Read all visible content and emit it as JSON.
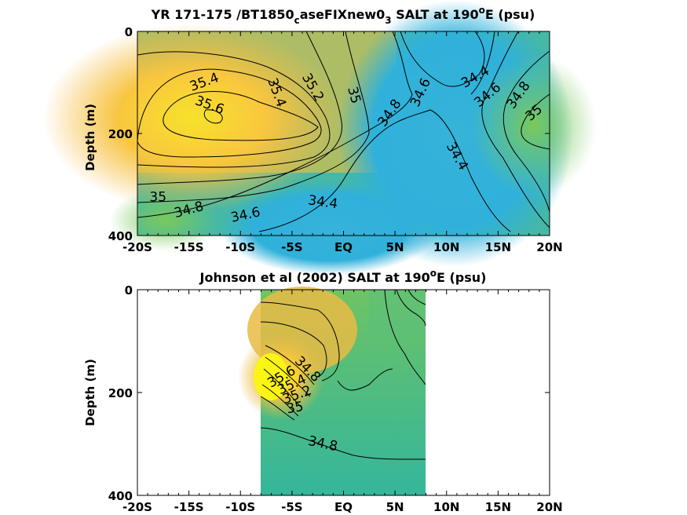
{
  "chart_data": [
    {
      "type": "heatmap",
      "title": "YR 171-175 /BT1850",
      "title_sub": "c",
      "title_mid": "aseFIXnew0",
      "title_sub2": "3",
      "title_tail": " SALT at 190",
      "title_sup": "o",
      "title_end": "E (psu)",
      "ylabel": "Depth (m)",
      "xlim": [
        -20,
        20
      ],
      "ylim": [
        0,
        400
      ],
      "y_reversed": true,
      "x_ticks": [
        {
          "value": -20,
          "label": "-20S"
        },
        {
          "value": -15,
          "label": "-15S"
        },
        {
          "value": -10,
          "label": "-10S"
        },
        {
          "value": -5,
          "label": "-5S"
        },
        {
          "value": 0,
          "label": "EQ"
        },
        {
          "value": 5,
          "label": "5N"
        },
        {
          "value": 10,
          "label": "10N"
        },
        {
          "value": 15,
          "label": "15N"
        },
        {
          "value": 20,
          "label": "20N"
        }
      ],
      "y_ticks": [
        {
          "value": 0,
          "label": "0"
        },
        {
          "value": 200,
          "label": "200"
        },
        {
          "value": 400,
          "label": "400"
        }
      ],
      "contour_labels": [
        {
          "text": "35.4",
          "lat": -13.5,
          "depth": 100,
          "rot": -20
        },
        {
          "text": "35.6",
          "lat": -13,
          "depth": 145,
          "rot": 20
        },
        {
          "text": "35.4",
          "lat": -6.5,
          "depth": 120,
          "rot": 70
        },
        {
          "text": "35.2",
          "lat": -3,
          "depth": 110,
          "rot": 60
        },
        {
          "text": "35",
          "lat": 1,
          "depth": 125,
          "rot": 75
        },
        {
          "text": "34.8",
          "lat": 4.5,
          "depth": 160,
          "rot": -55
        },
        {
          "text": "34.6",
          "lat": 7.5,
          "depth": 120,
          "rot": -65
        },
        {
          "text": "34.4",
          "lat": 12.8,
          "depth": 90,
          "rot": -30
        },
        {
          "text": "34.6",
          "lat": 14,
          "depth": 125,
          "rot": -40
        },
        {
          "text": "34.8",
          "lat": 17,
          "depth": 125,
          "rot": -55
        },
        {
          "text": "35",
          "lat": 18.5,
          "depth": 160,
          "rot": -40
        },
        {
          "text": "34.4",
          "lat": 11,
          "depth": 245,
          "rot": 60
        },
        {
          "text": "35",
          "lat": -18,
          "depth": 325,
          "rot": 0
        },
        {
          "text": "34.8",
          "lat": -15,
          "depth": 350,
          "rot": -15
        },
        {
          "text": "34.6",
          "lat": -9.5,
          "depth": 360,
          "rot": -12
        },
        {
          "text": "34.4",
          "lat": -2,
          "depth": 335,
          "rot": 8
        }
      ]
    },
    {
      "type": "heatmap",
      "title": "Johnson et al (2002) SALT at 190",
      "title_sup": "o",
      "title_end": "E (psu)",
      "ylabel": "Depth (m)",
      "xlim": [
        -20,
        20
      ],
      "ylim": [
        0,
        400
      ],
      "data_lat_range": [
        -8,
        8
      ],
      "y_reversed": true,
      "x_ticks": [
        {
          "value": -20,
          "label": "-20S"
        },
        {
          "value": -15,
          "label": "-15S"
        },
        {
          "value": -10,
          "label": "-10S"
        },
        {
          "value": -5,
          "label": "-5S"
        },
        {
          "value": 0,
          "label": "EQ"
        },
        {
          "value": 5,
          "label": "5N"
        },
        {
          "value": 10,
          "label": "10N"
        },
        {
          "value": 15,
          "label": "15N"
        },
        {
          "value": 20,
          "label": "20N"
        }
      ],
      "y_ticks": [
        {
          "value": 0,
          "label": "0"
        },
        {
          "value": 200,
          "label": "200"
        },
        {
          "value": 400,
          "label": "400"
        }
      ],
      "contour_labels": [
        {
          "text": "34.8",
          "lat": -2,
          "depth": 300,
          "rot": 12
        },
        {
          "text": "35",
          "lat": -4.7,
          "depth": 230,
          "rot": -10
        },
        {
          "text": "35.2",
          "lat": -4.5,
          "depth": 205,
          "rot": -20
        },
        {
          "text": "35.4",
          "lat": -5,
          "depth": 185,
          "rot": -25
        },
        {
          "text": "35.6",
          "lat": -6,
          "depth": 170,
          "rot": -30
        },
        {
          "text": "34.8",
          "lat": -3.5,
          "depth": 155,
          "rot": 45
        }
      ]
    }
  ]
}
